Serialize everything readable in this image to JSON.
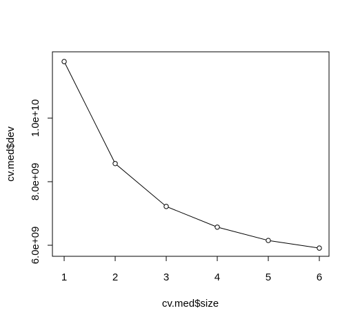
{
  "chart_data": {
    "type": "line",
    "x": [
      1,
      2,
      3,
      4,
      5,
      6
    ],
    "values": [
      11780000000,
      8570000000,
      7220000000,
      6570000000,
      6150000000,
      5910000000
    ],
    "color": "#000000",
    "xlabel": "cv.med$size",
    "ylabel": "cv.med$dev",
    "xlim": [
      0.77,
      6.19
    ],
    "xticks": [
      1,
      2,
      3,
      4,
      5,
      6
    ],
    "ylim": [
      5652000000,
      12087000000
    ],
    "yticks": [
      {
        "value": 6000000000,
        "label": "6.0e+09"
      },
      {
        "value": 8000000000,
        "label": "8.0e+09"
      },
      {
        "value": 10000000000,
        "label": "1.0e+10"
      }
    ],
    "markers": true
  }
}
